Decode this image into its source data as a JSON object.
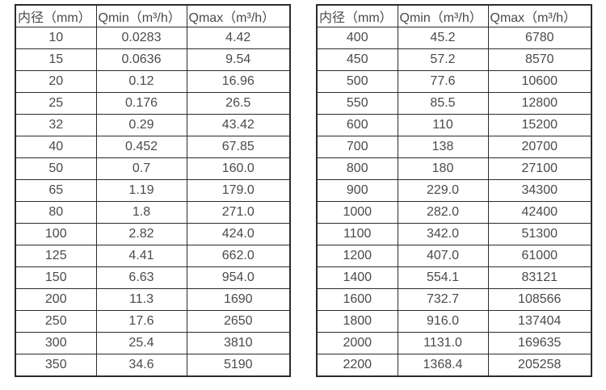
{
  "colors": {
    "background": "#ffffff",
    "border": "#2b2b2b",
    "text": "#4a4a4a"
  },
  "columns": [
    "内径（mm）",
    "Qmin（m³/h）",
    "Qmax（m³/h）"
  ],
  "tables": [
    {
      "rows": [
        [
          "10",
          "0.0283",
          "4.42"
        ],
        [
          "15",
          "0.0636",
          "9.54"
        ],
        [
          "20",
          "0.12",
          "16.96"
        ],
        [
          "25",
          "0.176",
          "26.5"
        ],
        [
          "32",
          "0.29",
          "43.42"
        ],
        [
          "40",
          "0.452",
          "67.85"
        ],
        [
          "50",
          "0.7",
          "160.0"
        ],
        [
          "65",
          "1.19",
          "179.0"
        ],
        [
          "80",
          "1.8",
          "271.0"
        ],
        [
          "100",
          "2.82",
          "424.0"
        ],
        [
          "125",
          "4.41",
          "662.0"
        ],
        [
          "150",
          "6.63",
          "954.0"
        ],
        [
          "200",
          "11.3",
          "1690"
        ],
        [
          "250",
          "17.6",
          "2650"
        ],
        [
          "300",
          "25.4",
          "3810"
        ],
        [
          "350",
          "34.6",
          "5190"
        ]
      ]
    },
    {
      "rows": [
        [
          "400",
          "45.2",
          "6780"
        ],
        [
          "450",
          "57.2",
          "8570"
        ],
        [
          "500",
          "77.6",
          "10600"
        ],
        [
          "550",
          "85.5",
          "12800"
        ],
        [
          "600",
          "110",
          "15200"
        ],
        [
          "700",
          "138",
          "20700"
        ],
        [
          "800",
          "180",
          "27100"
        ],
        [
          "900",
          "229.0",
          "34300"
        ],
        [
          "1000",
          "282.0",
          "42400"
        ],
        [
          "1100",
          "342.0",
          "51300"
        ],
        [
          "1200",
          "407.0",
          "61000"
        ],
        [
          "1400",
          "554.1",
          "83121"
        ],
        [
          "1600",
          "732.7",
          "108566"
        ],
        [
          "1800",
          "916.0",
          "137404"
        ],
        [
          "2000",
          "1131.0",
          "169635"
        ],
        [
          "2200",
          "1368.4",
          "205258"
        ]
      ]
    }
  ]
}
